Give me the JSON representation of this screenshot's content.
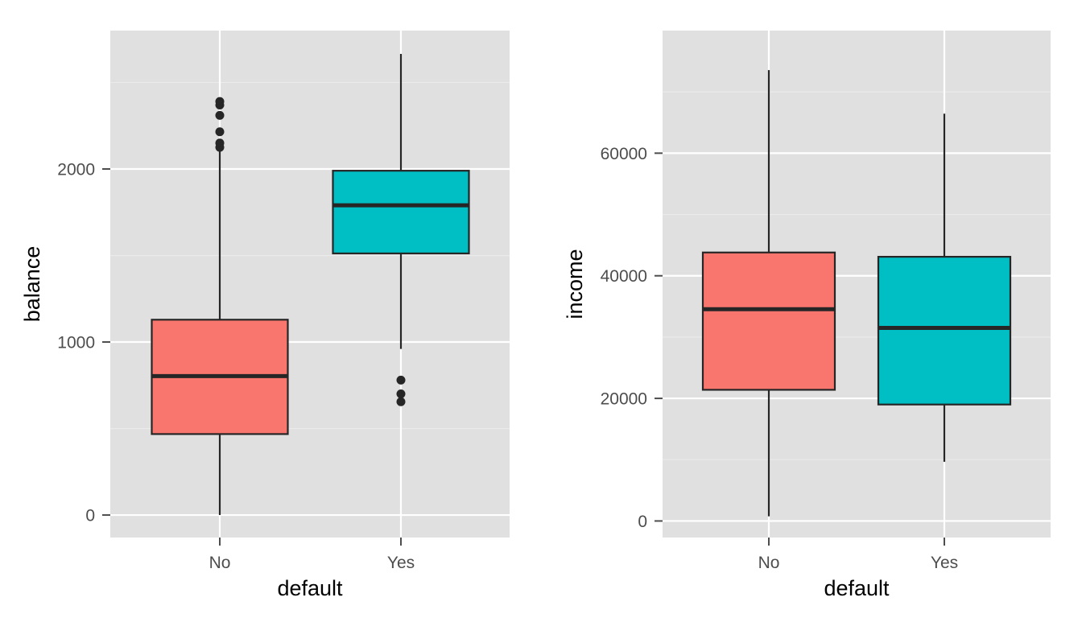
{
  "chart_data": [
    {
      "type": "boxplot",
      "xlabel": "default",
      "ylabel": "balance",
      "categories": [
        "No",
        "Yes"
      ],
      "ylim": [
        -130,
        2800
      ],
      "yticks": [
        0,
        1000,
        2000
      ],
      "ytick_labels": [
        "0",
        "1000",
        "2000"
      ],
      "grid": true,
      "boxes": [
        {
          "category": "No",
          "min": 0,
          "q1": 468,
          "median": 803,
          "q3": 1129,
          "max": 2145,
          "color": "#F8766D",
          "outliers": [
            2390,
            2370,
            2310,
            2215,
            2150,
            2125
          ]
        },
        {
          "category": "Yes",
          "min": 960,
          "q1": 1512,
          "median": 1790,
          "q3": 1990,
          "max": 2665,
          "color": "#00BFC4",
          "outliers": [
            780,
            700,
            655
          ]
        }
      ]
    },
    {
      "type": "boxplot",
      "xlabel": "default",
      "ylabel": "income",
      "categories": [
        "No",
        "Yes"
      ],
      "ylim": [
        -2700,
        80000
      ],
      "yticks": [
        0,
        20000,
        40000,
        60000
      ],
      "ytick_labels": [
        "0",
        "20000",
        "40000",
        "60000"
      ],
      "grid": true,
      "boxes": [
        {
          "category": "No",
          "min": 770,
          "q1": 21400,
          "median": 34550,
          "q3": 43800,
          "max": 73550,
          "color": "#F8766D",
          "outliers": []
        },
        {
          "category": "Yes",
          "min": 9660,
          "q1": 19000,
          "median": 31500,
          "q3": 43100,
          "max": 66450,
          "color": "#00BFC4",
          "outliers": []
        }
      ]
    }
  ]
}
